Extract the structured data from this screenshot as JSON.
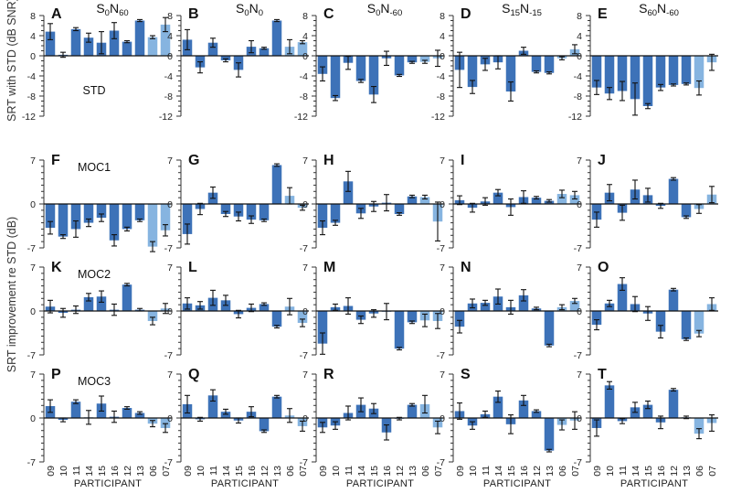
{
  "chart_data": {
    "type": "bar",
    "title": "",
    "participants": [
      "09",
      "10",
      "11",
      "14",
      "15",
      "16",
      "12",
      "13",
      "06",
      "07"
    ],
    "xlabel": "PARTICIPANT",
    "colors": {
      "dark": "#3d72b8",
      "light": "#86b4e0",
      "error": "#111111",
      "zero_line": "#111111"
    },
    "dark_count": 8,
    "ylabels": {
      "top": "SRT with STD (dB SNR)",
      "bottom": "SRT improvement re STD (dB)"
    },
    "columns": [
      {
        "main": "S",
        "sub1": "0",
        "mid": "N",
        "sub2": "60"
      },
      {
        "main": "S",
        "sub1": "0",
        "mid": "N",
        "sub2": "0"
      },
      {
        "main": "S",
        "sub1": "0",
        "mid": "N",
        "sub2": "-60"
      },
      {
        "main": "S",
        "sub1": "15",
        "mid": "N",
        "sub2": "-15"
      },
      {
        "main": "S",
        "sub1": "60",
        "mid": "N",
        "sub2": "-60"
      }
    ],
    "rows": [
      {
        "strategy": "STD",
        "ylim": [
          -12,
          8
        ],
        "ytick_labels": [
          "8",
          "4",
          "0",
          "-4",
          "-8",
          "-12"
        ],
        "ytick_values": [
          8,
          4,
          0,
          -4,
          -8,
          -12
        ],
        "panels": [
          {
            "letter": "A",
            "values": [
              4.8,
              0.2,
              5.3,
              3.6,
              2.6,
              5.0,
              2.8,
              7.0,
              3.7,
              6.2
            ],
            "errors": [
              1.6,
              0.5,
              0.3,
              0.9,
              2.2,
              1.6,
              0.2,
              0.2,
              0.3,
              1.4
            ]
          },
          {
            "letter": "B",
            "values": [
              3.2,
              -2.3,
              2.6,
              -0.9,
              -2.8,
              1.8,
              1.5,
              7.0,
              1.8,
              2.7
            ],
            "errors": [
              2.0,
              1.1,
              0.9,
              0.3,
              1.4,
              1.2,
              0.2,
              0.2,
              1.4,
              0.3
            ]
          },
          {
            "letter": "C",
            "values": [
              -3.6,
              -8.4,
              -1.4,
              -5.0,
              -7.7,
              -0.5,
              -3.9,
              -1.3,
              -1.2,
              -0.5
            ],
            "errors": [
              1.4,
              0.5,
              1.3,
              0.3,
              1.6,
              1.4,
              0.2,
              0.2,
              0.3,
              1.6
            ]
          },
          {
            "letter": "D",
            "values": [
              -2.8,
              -6.2,
              -1.7,
              -1.3,
              -7.1,
              1.0,
              -3.2,
              -3.4,
              -0.5,
              1.3
            ],
            "errors": [
              3.5,
              1.3,
              1.2,
              1.3,
              1.9,
              0.7,
              0.2,
              0.2,
              0.3,
              0.9
            ]
          },
          {
            "letter": "E",
            "values": [
              -6.3,
              -7.5,
              -7.0,
              -8.6,
              -10.0,
              -6.3,
              -5.8,
              -5.6,
              -6.4,
              -1.3
            ],
            "errors": [
              1.4,
              1.2,
              1.9,
              3.2,
              0.5,
              0.6,
              0.2,
              0.2,
              1.4,
              1.6
            ]
          }
        ]
      },
      {
        "strategy": "MOC1",
        "ylim": [
          -7,
          7
        ],
        "ytick_labels": [
          "7",
          "0",
          "-7"
        ],
        "ytick_values": [
          7,
          0,
          -7
        ],
        "panels": [
          {
            "letter": "F",
            "values": [
              -3.8,
              -5.2,
              -4.0,
              -3.0,
              -2.2,
              -5.8,
              -4.0,
              -2.6,
              -6.8,
              -4.2
            ],
            "errors": [
              1.0,
              0.3,
              1.3,
              0.6,
              0.6,
              0.9,
              0.3,
              0.2,
              0.8,
              0.9
            ]
          },
          {
            "letter": "G",
            "values": [
              -4.8,
              -0.8,
              1.8,
              -1.6,
              -2.0,
              -2.5,
              -2.6,
              6.2,
              1.3,
              -0.6
            ],
            "errors": [
              1.6,
              0.9,
              0.9,
              0.4,
              0.7,
              0.6,
              0.2,
              0.2,
              1.3,
              0.4
            ]
          },
          {
            "letter": "H",
            "values": [
              -3.8,
              -3.0,
              3.6,
              -1.5,
              -0.4,
              0.2,
              -1.6,
              1.2,
              1.1,
              -2.8
            ],
            "errors": [
              1.1,
              0.4,
              1.6,
              0.8,
              0.8,
              1.3,
              0.2,
              0.2,
              0.3,
              3.1
            ]
          },
          {
            "letter": "I",
            "values": [
              0.6,
              -0.6,
              0.4,
              1.8,
              -0.5,
              1.1,
              1.0,
              0.5,
              1.6,
              1.4
            ],
            "errors": [
              0.7,
              0.7,
              0.6,
              0.5,
              1.3,
              1.0,
              0.2,
              0.2,
              0.6,
              0.6
            ]
          },
          {
            "letter": "J",
            "values": [
              -2.5,
              1.8,
              -1.4,
              2.3,
              1.4,
              -0.3,
              4.0,
              -2.1,
              -0.8,
              1.5
            ],
            "errors": [
              1.2,
              1.3,
              1.2,
              1.5,
              1.1,
              0.4,
              0.2,
              0.2,
              0.7,
              1.3
            ]
          }
        ]
      },
      {
        "strategy": "MOC2",
        "ylim": [
          -7,
          7
        ],
        "ytick_labels": [
          "7",
          "0",
          "-7"
        ],
        "ytick_values": [
          7,
          0,
          -7
        ],
        "panels": [
          {
            "letter": "K",
            "values": [
              0.7,
              -0.3,
              0.2,
              2.2,
              2.3,
              0.2,
              4.2,
              0.2,
              -1.6,
              0.4
            ],
            "errors": [
              1.0,
              0.7,
              0.6,
              0.6,
              0.9,
              0.9,
              0.2,
              0.2,
              0.6,
              0.8
            ]
          },
          {
            "letter": "L",
            "values": [
              1.2,
              0.9,
              2.1,
              1.7,
              -0.5,
              0.5,
              1.1,
              -2.5,
              0.7,
              -1.9
            ],
            "errors": [
              0.9,
              0.6,
              1.2,
              0.8,
              0.6,
              0.6,
              0.2,
              0.2,
              1.3,
              0.6
            ]
          },
          {
            "letter": "M",
            "values": [
              -5.2,
              0.6,
              0.8,
              -1.4,
              -0.4,
              -0.1,
              -6.0,
              -1.8,
              -1.5,
              -1.6
            ],
            "errors": [
              1.7,
              0.5,
              1.3,
              0.6,
              0.6,
              1.3,
              0.2,
              0.2,
              1.0,
              1.2
            ]
          },
          {
            "letter": "N",
            "values": [
              -2.5,
              1.2,
              1.3,
              2.3,
              0.6,
              2.5,
              0.4,
              -5.5,
              0.6,
              1.6
            ],
            "errors": [
              1.0,
              0.7,
              0.4,
              1.2,
              1.1,
              0.9,
              0.2,
              0.2,
              0.4,
              0.4
            ]
          },
          {
            "letter": "O",
            "values": [
              -2.2,
              1.2,
              4.3,
              1.1,
              -0.4,
              -3.3,
              3.4,
              -4.5,
              -3.6,
              1.1
            ],
            "errors": [
              0.8,
              0.5,
              1.0,
              1.2,
              1.1,
              1.0,
              0.2,
              0.2,
              0.5,
              1.0
            ]
          }
        ]
      },
      {
        "strategy": "MOC3",
        "ylim": [
          -7,
          7
        ],
        "ytick_labels": [
          "7",
          "0",
          "-7"
        ],
        "ytick_values": [
          7,
          0,
          -7
        ],
        "panels": [
          {
            "letter": "P",
            "values": [
              1.9,
              -0.3,
              2.6,
              0.1,
              2.3,
              0.2,
              1.6,
              0.8,
              -0.9,
              -1.6
            ],
            "errors": [
              1.0,
              0.3,
              0.3,
              1.1,
              1.2,
              0.9,
              0.2,
              0.2,
              0.5,
              0.7
            ]
          },
          {
            "letter": "Q",
            "values": [
              2.2,
              -0.2,
              3.6,
              1.0,
              -0.4,
              1.0,
              -2.1,
              3.4,
              0.4,
              -1.3
            ],
            "errors": [
              1.4,
              0.3,
              0.9,
              0.4,
              0.4,
              0.8,
              0.2,
              0.2,
              1.1,
              0.8
            ]
          },
          {
            "letter": "R",
            "values": [
              -1.5,
              -1.2,
              0.8,
              2.1,
              1.5,
              -2.3,
              -0.1,
              2.1,
              2.2,
              -1.5
            ],
            "errors": [
              0.8,
              0.6,
              1.1,
              1.1,
              0.8,
              1.2,
              0.2,
              0.2,
              1.4,
              1.0
            ]
          },
          {
            "letter": "S",
            "values": [
              1.1,
              -1.2,
              0.6,
              3.4,
              -1.0,
              2.8,
              1.1,
              -5.2,
              -1.1,
              -0.4
            ],
            "errors": [
              1.3,
              0.6,
              0.5,
              0.9,
              1.5,
              0.8,
              0.2,
              0.2,
              0.8,
              1.4
            ]
          },
          {
            "letter": "T",
            "values": [
              -1.6,
              5.2,
              -0.5,
              1.7,
              2.1,
              -0.7,
              4.5,
              0.1,
              -2.5,
              -0.8
            ],
            "errors": [
              1.3,
              0.6,
              0.4,
              0.8,
              0.6,
              1.0,
              0.2,
              0.2,
              0.8,
              1.3
            ]
          }
        ]
      }
    ]
  }
}
